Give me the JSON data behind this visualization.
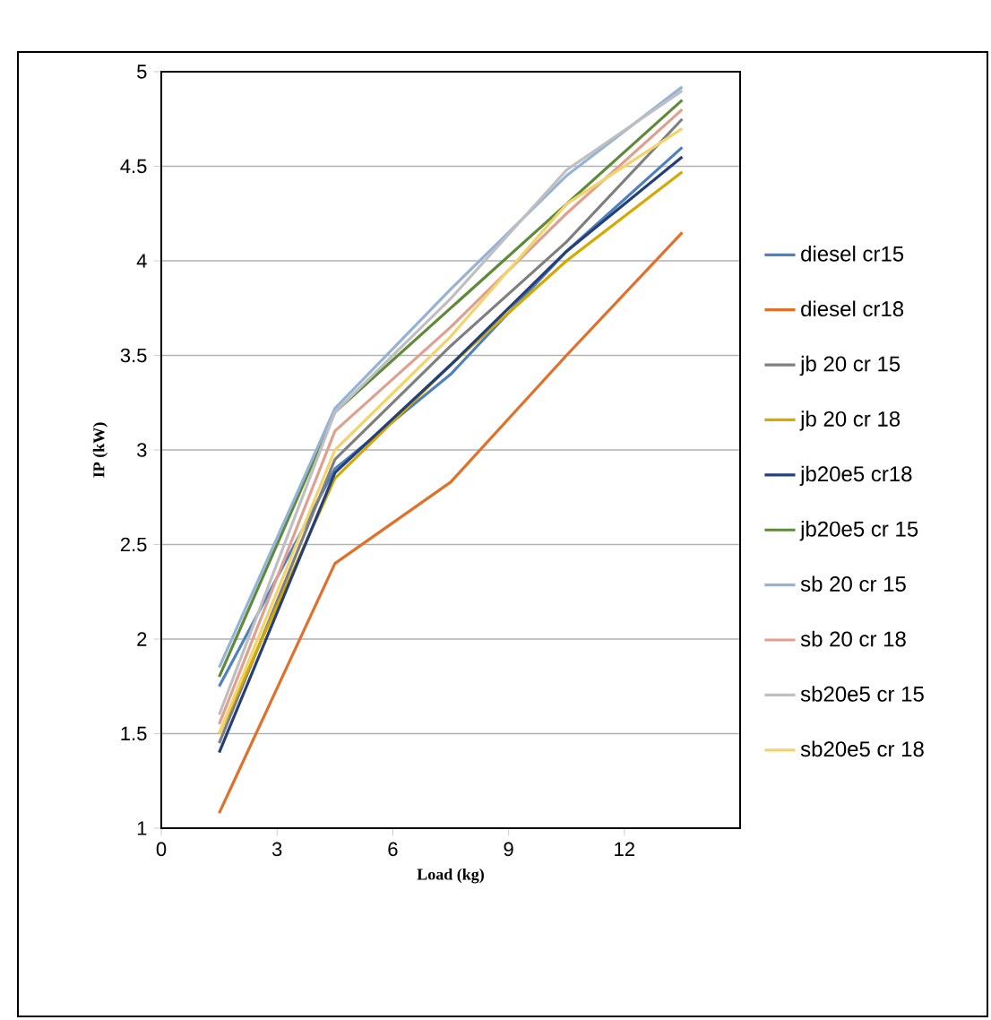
{
  "chart_data": {
    "type": "line",
    "xlabel": "Load (kg)",
    "ylabel": "IP (kW)",
    "x": [
      1.5,
      4.5,
      7.5,
      10.5,
      13.5
    ],
    "xlim": [
      0,
      15
    ],
    "xticks": [
      0,
      3,
      6,
      9,
      12
    ],
    "ylim": [
      1,
      5
    ],
    "yticks": [
      1,
      1.5,
      2,
      2.5,
      3,
      3.5,
      4,
      4.5,
      5
    ],
    "grid": "y",
    "legend": "right",
    "marker": "none",
    "line_style": "solid",
    "series": [
      {
        "name": "diesel cr15",
        "color": "#4f81bd",
        "values": [
          1.75,
          2.9,
          3.4,
          4.05,
          4.6
        ]
      },
      {
        "name": "diesel cr18",
        "color": "#e0702a",
        "values": [
          1.08,
          2.4,
          2.83,
          3.5,
          4.15
        ]
      },
      {
        "name": "jb 20 cr 15",
        "color": "#7f7f7f",
        "values": [
          1.45,
          2.95,
          3.55,
          4.1,
          4.75
        ]
      },
      {
        "name": "jb 20 cr 18",
        "color": "#d4a900",
        "values": [
          1.5,
          2.85,
          3.45,
          4.0,
          4.47
        ]
      },
      {
        "name": "jb20e5 cr18",
        "color": "#243f7a",
        "values": [
          1.4,
          2.88,
          3.45,
          4.05,
          4.55
        ]
      },
      {
        "name": "jb20e5 cr 15",
        "color": "#5e8a3a",
        "values": [
          1.8,
          3.2,
          3.75,
          4.3,
          4.85
        ]
      },
      {
        "name": "sb 20 cr 15",
        "color": "#95b3d7",
        "values": [
          1.85,
          3.22,
          3.85,
          4.45,
          4.92
        ]
      },
      {
        "name": "sb 20 cr 18",
        "color": "#e0a090",
        "values": [
          1.55,
          3.1,
          3.65,
          4.25,
          4.8
        ]
      },
      {
        "name": "sb20e5 cr 15",
        "color": "#bfbfbf",
        "values": [
          1.6,
          3.2,
          3.8,
          4.48,
          4.9
        ]
      },
      {
        "name": "sb20e5 cr 18",
        "color": "#f2d46a",
        "values": [
          1.5,
          3.0,
          3.6,
          4.3,
          4.7
        ]
      }
    ]
  }
}
